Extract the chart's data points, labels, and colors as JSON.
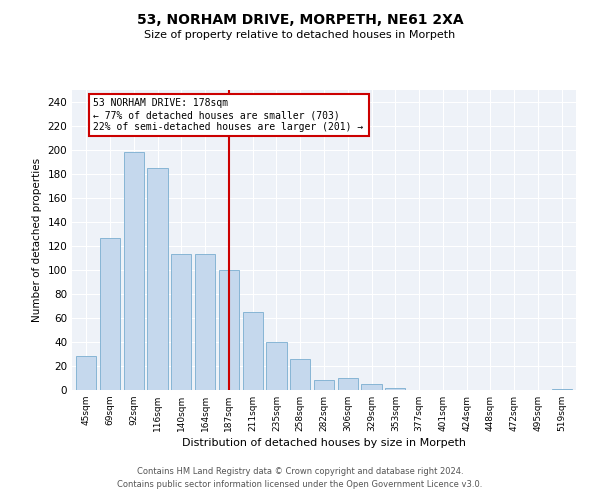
{
  "title1": "53, NORHAM DRIVE, MORPETH, NE61 2XA",
  "title2": "Size of property relative to detached houses in Morpeth",
  "xlabel": "Distribution of detached houses by size in Morpeth",
  "ylabel": "Number of detached properties",
  "categories": [
    "45sqm",
    "69sqm",
    "92sqm",
    "116sqm",
    "140sqm",
    "164sqm",
    "187sqm",
    "211sqm",
    "235sqm",
    "258sqm",
    "282sqm",
    "306sqm",
    "329sqm",
    "353sqm",
    "377sqm",
    "401sqm",
    "424sqm",
    "448sqm",
    "472sqm",
    "495sqm",
    "519sqm"
  ],
  "values": [
    28,
    127,
    198,
    185,
    113,
    113,
    100,
    65,
    40,
    26,
    8,
    10,
    5,
    2,
    0,
    0,
    0,
    0,
    0,
    0,
    1
  ],
  "bar_color": "#c5d8ed",
  "bar_edge_color": "#7aaed0",
  "vline_x_index": 6,
  "vline_color": "#cc0000",
  "annotation_text": "53 NORHAM DRIVE: 178sqm\n← 77% of detached houses are smaller (703)\n22% of semi-detached houses are larger (201) →",
  "annotation_box_color": "#cc0000",
  "ylim": [
    0,
    250
  ],
  "yticks": [
    0,
    20,
    40,
    60,
    80,
    100,
    120,
    140,
    160,
    180,
    200,
    220,
    240
  ],
  "bg_color": "#eef2f8",
  "footer1": "Contains HM Land Registry data © Crown copyright and database right 2024.",
  "footer2": "Contains public sector information licensed under the Open Government Licence v3.0."
}
